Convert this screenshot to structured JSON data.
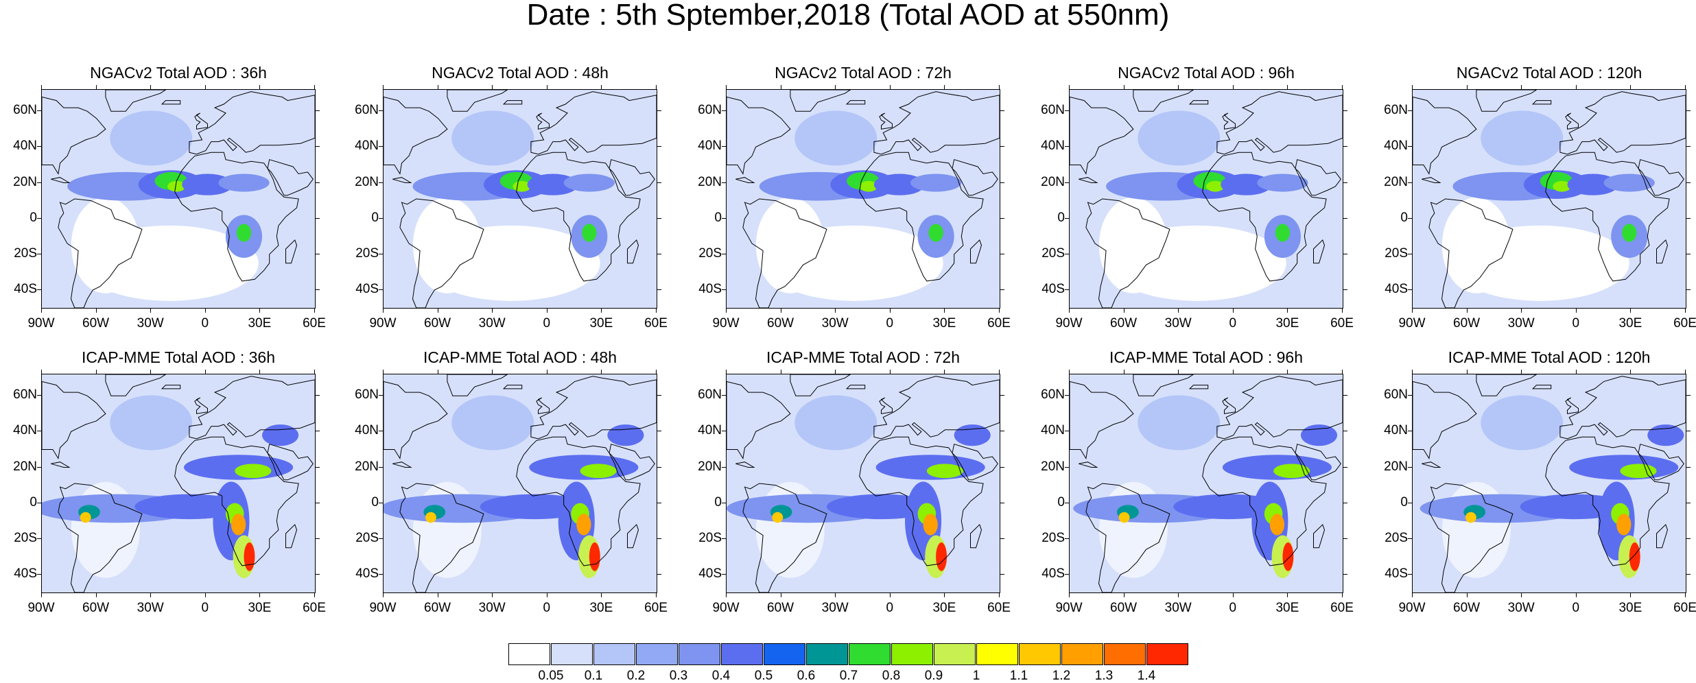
{
  "title": "Date : 5th Sptember,2018 (Total AOD at 550nm)",
  "panels": [
    {
      "title": "NGACv2 Total AOD : 36h",
      "model": "NGACv2",
      "lead": "36h"
    },
    {
      "title": "NGACv2 Total AOD : 48h",
      "model": "NGACv2",
      "lead": "48h"
    },
    {
      "title": "NGACv2 Total AOD : 72h",
      "model": "NGACv2",
      "lead": "72h"
    },
    {
      "title": "NGACv2 Total AOD : 96h",
      "model": "NGACv2",
      "lead": "96h"
    },
    {
      "title": "NGACv2 Total AOD : 120h",
      "model": "NGACv2",
      "lead": "120h"
    },
    {
      "title": "ICAP-MME Total AOD : 36h",
      "model": "ICAP-MME",
      "lead": "36h"
    },
    {
      "title": "ICAP-MME Total AOD : 48h",
      "model": "ICAP-MME",
      "lead": "48h"
    },
    {
      "title": "ICAP-MME Total AOD : 72h",
      "model": "ICAP-MME",
      "lead": "72h"
    },
    {
      "title": "ICAP-MME Total AOD : 96h",
      "model": "ICAP-MME",
      "lead": "96h"
    },
    {
      "title": "ICAP-MME Total AOD : 120h",
      "model": "ICAP-MME",
      "lead": "120h"
    }
  ],
  "lat_labels": [
    "60N",
    "40N",
    "20N",
    "0",
    "20S",
    "40S"
  ],
  "lon_labels": [
    "90W",
    "60W",
    "30W",
    "0",
    "30E",
    "60E"
  ],
  "map_extent": {
    "lon": [
      -90,
      60
    ],
    "lat": [
      -50,
      72
    ]
  },
  "colorbar": {
    "labels": [
      "0.05",
      "0.1",
      "0.2",
      "0.3",
      "0.4",
      "0.5",
      "0.6",
      "0.7",
      "0.8",
      "0.9",
      "1",
      "1.1",
      "1.2",
      "1.3",
      "1.4"
    ],
    "colors": [
      "#ffffff",
      "#d6e0fb",
      "#b4c6f8",
      "#92aaf5",
      "#7e94f0",
      "#5c6ef0",
      "#1464f0",
      "#009696",
      "#30dc30",
      "#8cf000",
      "#c8f050",
      "#ffff00",
      "#ffc800",
      "#ffa000",
      "#ff6e00",
      "#ff2800"
    ]
  }
}
